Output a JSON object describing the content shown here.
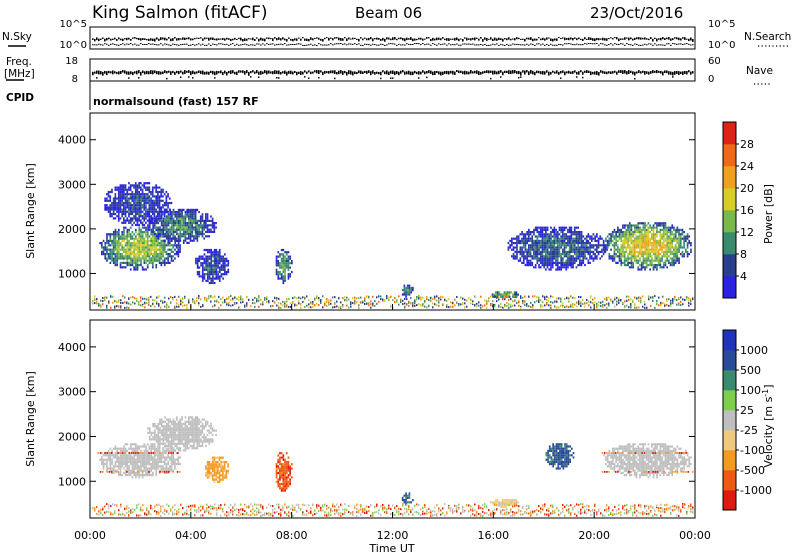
{
  "header": {
    "station": "King Salmon (fitACF)",
    "beam": "Beam 06",
    "date": "23/Oct/2016"
  },
  "top_panels": {
    "nsky_label": "N.Sky",
    "nsky_ticks": [
      "10^5",
      "10^0"
    ],
    "nsearch_label": "N.Search",
    "nsearch_ticks": [
      "10^5",
      "10^0"
    ],
    "freq_label": "Freq.",
    "freq_unit": "[MHz]",
    "freq_ticks": [
      "18",
      "8"
    ],
    "nave_label": "Nave",
    "nave_ticks": [
      "60",
      "0"
    ],
    "cpid_label": "CPID",
    "cpid_value": "normalsound (fast) 157 RF"
  },
  "colors": {
    "power": [
      "#2a22e0",
      "#2a3f8c",
      "#3a8a6e",
      "#7ab84a",
      "#d6cc2a",
      "#f0a020",
      "#ee6a18",
      "#dd2218"
    ],
    "velocity": [
      "#dd1a10",
      "#ef5a12",
      "#f49a20",
      "#f0c880",
      "#bfbfbf",
      "#7ed04a",
      "#3a8a6e",
      "#2a4a9a",
      "#2233bb"
    ],
    "power_scatter": [
      "#2a3f8c",
      "#2a3f8c",
      "#3a8a6e",
      "#7ab84a",
      "#d6cc2a",
      "#f0a020",
      "#ee6a18"
    ],
    "velocity_scatter": [
      "#bfbfbf",
      "#bfbfbf",
      "#f49a20",
      "#ef5a12",
      "#7ed04a",
      "#dd1a10"
    ]
  },
  "chart_data": [
    {
      "type": "heatmap",
      "panel": "power",
      "ylabel": "Slant Range [km]",
      "yticks": [
        1000,
        2000,
        3000,
        4000
      ],
      "ylim": [
        180,
        4600
      ],
      "xlim": [
        0,
        24
      ],
      "colorbar_label": "Power [dB]",
      "colorbar_ticks": [
        4,
        8,
        12,
        16,
        20,
        24,
        28
      ],
      "colorbar_range": [
        0,
        32
      ],
      "regions": [
        {
          "t": [
            0.3,
            3.6
          ],
          "r": [
            1100,
            2100
          ],
          "peak": 16
        },
        {
          "t": [
            2.2,
            5.0
          ],
          "r": [
            1700,
            2500
          ],
          "peak": 10
        },
        {
          "t": [
            0.5,
            3.2
          ],
          "r": [
            2100,
            3100
          ],
          "peak": 6
        },
        {
          "t": [
            4.1,
            5.5
          ],
          "r": [
            800,
            1600
          ],
          "peak": 6
        },
        {
          "t": [
            7.3,
            8.0
          ],
          "r": [
            800,
            1600
          ],
          "peak": 12
        },
        {
          "t": [
            12.3,
            12.8
          ],
          "r": [
            500,
            800
          ],
          "peak": 10
        },
        {
          "t": [
            15.8,
            17.0
          ],
          "r": [
            450,
            650
          ],
          "peak": 14
        },
        {
          "t": [
            16.5,
            20.5
          ],
          "r": [
            1100,
            2100
          ],
          "peak": 8
        },
        {
          "t": [
            20.3,
            23.9
          ],
          "r": [
            1100,
            2200
          ],
          "peak": 20
        }
      ]
    },
    {
      "type": "heatmap",
      "panel": "velocity",
      "xlabel": "Time UT",
      "ylabel": "Slant Range [km]",
      "yticks": [
        1000,
        2000,
        3000,
        4000
      ],
      "ylim": [
        180,
        4600
      ],
      "xlim": [
        0,
        24
      ],
      "xticks": [
        "00:00",
        "04:00",
        "08:00",
        "12:00",
        "16:00",
        "20:00",
        "00:00"
      ],
      "colorbar_label": "Velocity [m s^-1]",
      "colorbar_ticks": [
        "1000",
        "500",
        "100",
        "25",
        "-25",
        "-100",
        "-500",
        "-1000"
      ],
      "regions": [
        {
          "t": [
            0.3,
            3.6
          ],
          "r": [
            1100,
            1900
          ],
          "velocity": 0
        },
        {
          "t": [
            2.2,
            5.0
          ],
          "r": [
            1700,
            2500
          ],
          "velocity": 0
        },
        {
          "t": [
            4.5,
            5.5
          ],
          "r": [
            1000,
            1600
          ],
          "velocity": -150
        },
        {
          "t": [
            7.3,
            8.0
          ],
          "r": [
            800,
            1700
          ],
          "velocity": -800
        },
        {
          "t": [
            12.3,
            12.8
          ],
          "r": [
            500,
            800
          ],
          "velocity": 120
        },
        {
          "t": [
            15.8,
            17.0
          ],
          "r": [
            450,
            650
          ],
          "velocity": -60
        },
        {
          "t": [
            18.0,
            19.2
          ],
          "r": [
            1300,
            1900
          ],
          "velocity": 150
        },
        {
          "t": [
            20.3,
            23.9
          ],
          "r": [
            1100,
            1900
          ],
          "velocity": 0
        }
      ]
    }
  ]
}
